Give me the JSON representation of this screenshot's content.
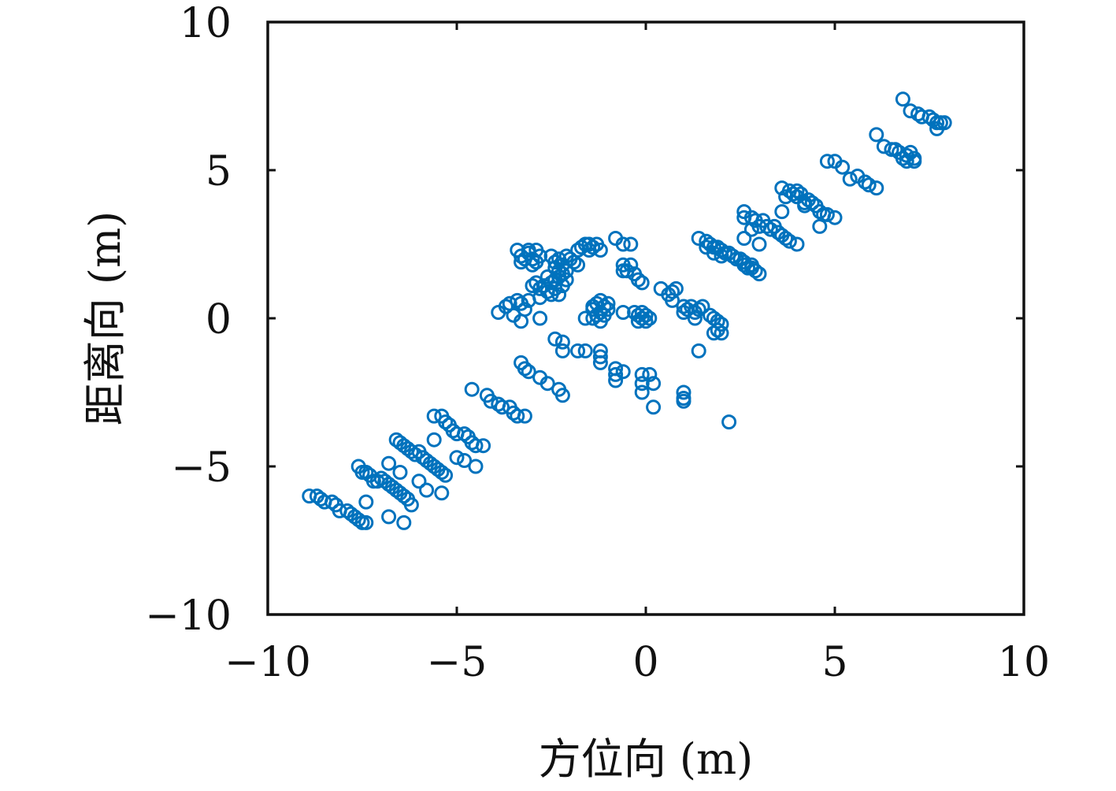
{
  "chart_data": {
    "type": "scatter",
    "title": "",
    "xlabel": "方位向 (m)",
    "ylabel": "距离向 (m)",
    "xlim": [
      -10,
      10
    ],
    "ylim": [
      -10,
      10
    ],
    "xticks": [
      -10,
      -5,
      0,
      5,
      10
    ],
    "yticks": [
      -10,
      -5,
      0,
      5,
      10
    ],
    "xtick_labels": [
      "−10",
      "−5",
      "0",
      "5",
      "10"
    ],
    "ytick_labels": [
      "−10",
      "−5",
      "0",
      "5",
      "10"
    ],
    "grid": false,
    "marker": "circle-open",
    "color": "#0072BD",
    "series": [
      {
        "points": [
          [
            -8.9,
            -6.0
          ],
          [
            -8.7,
            -6.0
          ],
          [
            -8.6,
            -6.1
          ],
          [
            -8.5,
            -6.2
          ],
          [
            -8.3,
            -6.2
          ],
          [
            -8.2,
            -6.3
          ],
          [
            -8.1,
            -6.5
          ],
          [
            -7.9,
            -6.5
          ],
          [
            -7.8,
            -6.6
          ],
          [
            -7.7,
            -6.7
          ],
          [
            -7.6,
            -6.8
          ],
          [
            -7.5,
            -6.9
          ],
          [
            -7.4,
            -6.9
          ],
          [
            -7.6,
            -5.0
          ],
          [
            -7.5,
            -5.2
          ],
          [
            -7.4,
            -5.2
          ],
          [
            -7.3,
            -5.3
          ],
          [
            -7.2,
            -5.5
          ],
          [
            -7.1,
            -5.5
          ],
          [
            -7.0,
            -5.4
          ],
          [
            -6.9,
            -5.5
          ],
          [
            -6.8,
            -5.6
          ],
          [
            -6.7,
            -5.7
          ],
          [
            -6.6,
            -5.8
          ],
          [
            -6.5,
            -5.9
          ],
          [
            -6.4,
            -6.0
          ],
          [
            -6.3,
            -6.1
          ],
          [
            -6.2,
            -6.3
          ],
          [
            -7.4,
            -6.2
          ],
          [
            -6.8,
            -6.7
          ],
          [
            -6.4,
            -6.9
          ],
          [
            -6.8,
            -4.9
          ],
          [
            -6.6,
            -4.1
          ],
          [
            -6.5,
            -4.2
          ],
          [
            -6.4,
            -4.3
          ],
          [
            -6.3,
            -4.4
          ],
          [
            -6.2,
            -4.5
          ],
          [
            -6.1,
            -4.6
          ],
          [
            -6.0,
            -4.5
          ],
          [
            -5.9,
            -4.7
          ],
          [
            -5.8,
            -4.8
          ],
          [
            -5.7,
            -4.9
          ],
          [
            -5.6,
            -5.0
          ],
          [
            -5.5,
            -5.1
          ],
          [
            -5.4,
            -5.2
          ],
          [
            -5.3,
            -5.3
          ],
          [
            -6.5,
            -5.2
          ],
          [
            -6.0,
            -5.5
          ],
          [
            -5.8,
            -5.8
          ],
          [
            -5.4,
            -5.9
          ],
          [
            -5.6,
            -3.3
          ],
          [
            -5.4,
            -3.3
          ],
          [
            -5.3,
            -3.5
          ],
          [
            -5.2,
            -3.6
          ],
          [
            -5.1,
            -3.8
          ],
          [
            -5.0,
            -3.9
          ],
          [
            -4.8,
            -3.9
          ],
          [
            -4.7,
            -4.0
          ],
          [
            -4.6,
            -4.2
          ],
          [
            -4.5,
            -4.3
          ],
          [
            -4.3,
            -4.3
          ],
          [
            -5.6,
            -4.1
          ],
          [
            -5.0,
            -4.7
          ],
          [
            -4.8,
            -4.8
          ],
          [
            -4.5,
            -5.0
          ],
          [
            -4.6,
            -2.4
          ],
          [
            -4.2,
            -2.6
          ],
          [
            -4.1,
            -2.8
          ],
          [
            -3.9,
            -2.9
          ],
          [
            -3.8,
            -3.0
          ],
          [
            -3.6,
            -3.0
          ],
          [
            -3.5,
            -3.2
          ],
          [
            -3.4,
            -3.3
          ],
          [
            -3.2,
            -3.3
          ],
          [
            -3.3,
            -1.5
          ],
          [
            -3.2,
            -1.7
          ],
          [
            -3.1,
            -1.8
          ],
          [
            -2.8,
            -2.0
          ],
          [
            -2.6,
            -2.2
          ],
          [
            -2.3,
            -2.4
          ],
          [
            -2.2,
            -2.6
          ],
          [
            -3.9,
            0.2
          ],
          [
            -3.7,
            0.4
          ],
          [
            -3.6,
            0.5
          ],
          [
            -3.4,
            0.6
          ],
          [
            -3.3,
            0.5
          ],
          [
            -3.2,
            0.3
          ],
          [
            -3.5,
            0.1
          ],
          [
            -3.3,
            -0.1
          ],
          [
            -2.8,
            0.0
          ],
          [
            -3.1,
            0.6
          ],
          [
            -3.4,
            2.3
          ],
          [
            -3.3,
            2.1
          ],
          [
            -3.2,
            2.0
          ],
          [
            -3.1,
            2.2
          ],
          [
            -3.0,
            2.0
          ],
          [
            -2.9,
            1.9
          ],
          [
            -2.8,
            2.1
          ],
          [
            -3.0,
            1.8
          ],
          [
            -3.3,
            1.9
          ],
          [
            -3.1,
            2.3
          ],
          [
            -2.9,
            2.3
          ],
          [
            -3.0,
            1.1
          ],
          [
            -2.9,
            1.2
          ],
          [
            -2.8,
            1.0
          ],
          [
            -2.7,
            1.1
          ],
          [
            -2.6,
            0.9
          ],
          [
            -2.5,
            1.2
          ],
          [
            -2.4,
            1.3
          ],
          [
            -2.3,
            1.4
          ],
          [
            -2.2,
            1.5
          ],
          [
            -2.1,
            1.6
          ],
          [
            -2.4,
            1.0
          ],
          [
            -2.2,
            1.1
          ],
          [
            -2.1,
            1.3
          ],
          [
            -2.5,
            0.8
          ],
          [
            -2.3,
            0.8
          ],
          [
            -2.6,
            1.4
          ],
          [
            -2.8,
            0.7
          ],
          [
            -2.5,
            2.1
          ],
          [
            -2.4,
            1.9
          ],
          [
            -2.3,
            2.0
          ],
          [
            -2.2,
            1.8
          ],
          [
            -2.1,
            2.1
          ],
          [
            -2.0,
            2.0
          ],
          [
            -1.9,
            1.9
          ],
          [
            -1.8,
            1.8
          ],
          [
            -2.4,
            1.7
          ],
          [
            -2.3,
            1.6
          ],
          [
            -1.8,
            2.3
          ],
          [
            -1.7,
            2.4
          ],
          [
            -1.6,
            2.5
          ],
          [
            -1.5,
            2.5
          ],
          [
            -1.4,
            2.4
          ],
          [
            -1.3,
            2.5
          ],
          [
            -1.2,
            2.3
          ],
          [
            -1.5,
            2.3
          ],
          [
            -0.8,
            2.7
          ],
          [
            -0.6,
            2.5
          ],
          [
            -0.4,
            2.5
          ],
          [
            -0.6,
            1.8
          ],
          [
            -0.5,
            1.6
          ],
          [
            -0.4,
            1.8
          ],
          [
            -0.3,
            1.5
          ],
          [
            -0.2,
            1.3
          ],
          [
            -0.1,
            1.2
          ],
          [
            -0.6,
            1.6
          ],
          [
            0.4,
            1.0
          ],
          [
            0.6,
            0.8
          ],
          [
            0.7,
            0.9
          ],
          [
            0.8,
            1.0
          ],
          [
            0.7,
            0.6
          ],
          [
            1.0,
            0.4
          ],
          [
            1.2,
            0.4
          ],
          [
            1.3,
            0.2
          ],
          [
            1.4,
            0.3
          ],
          [
            1.5,
            0.4
          ],
          [
            1.0,
            0.2
          ],
          [
            1.1,
            0.3
          ],
          [
            1.3,
            0.0
          ],
          [
            1.7,
            0.1
          ],
          [
            1.8,
            0.0
          ],
          [
            1.9,
            -0.1
          ],
          [
            2.0,
            -0.2
          ],
          [
            1.8,
            -0.5
          ],
          [
            1.9,
            -0.4
          ],
          [
            2.0,
            -0.5
          ],
          [
            1.4,
            -1.1
          ],
          [
            -1.2,
            0.6
          ],
          [
            -1.3,
            0.5
          ],
          [
            -1.4,
            0.4
          ],
          [
            -1.1,
            0.4
          ],
          [
            -1.0,
            0.3
          ],
          [
            -1.2,
            0.2
          ],
          [
            -1.3,
            0.1
          ],
          [
            -1.1,
            0.1
          ],
          [
            -1.4,
            0.0
          ],
          [
            -1.6,
            0.0
          ],
          [
            -1.2,
            -0.1
          ],
          [
            -1.4,
            0.3
          ],
          [
            -1.0,
            0.5
          ],
          [
            -0.3,
            0.2
          ],
          [
            -0.2,
            0.1
          ],
          [
            -0.1,
            0.0
          ],
          [
            0.0,
            -0.1
          ],
          [
            0.1,
            0.0
          ],
          [
            0.0,
            0.1
          ],
          [
            -0.2,
            -0.1
          ],
          [
            -0.1,
            0.2
          ],
          [
            -0.6,
            0.2
          ],
          [
            -2.4,
            -0.7
          ],
          [
            -2.2,
            -0.8
          ],
          [
            -2.2,
            -1.1
          ],
          [
            -1.8,
            -1.1
          ],
          [
            -1.6,
            -1.1
          ],
          [
            -1.2,
            -1.1
          ],
          [
            -1.2,
            -1.3
          ],
          [
            -1.2,
            -1.5
          ],
          [
            -0.8,
            -1.7
          ],
          [
            -0.8,
            -1.9
          ],
          [
            -0.8,
            -2.1
          ],
          [
            -0.6,
            -1.8
          ],
          [
            -0.1,
            -1.9
          ],
          [
            0.1,
            -1.9
          ],
          [
            -0.1,
            -2.2
          ],
          [
            -0.1,
            -2.5
          ],
          [
            0.2,
            -2.2
          ],
          [
            0.2,
            -3.0
          ],
          [
            1.0,
            -2.5
          ],
          [
            1.0,
            -2.7
          ],
          [
            1.0,
            -2.8
          ],
          [
            2.2,
            -3.5
          ],
          [
            1.4,
            2.7
          ],
          [
            1.6,
            2.6
          ],
          [
            1.7,
            2.5
          ],
          [
            1.8,
            2.4
          ],
          [
            1.9,
            2.4
          ],
          [
            2.0,
            2.3
          ],
          [
            2.1,
            2.2
          ],
          [
            2.2,
            2.2
          ],
          [
            2.3,
            2.1
          ],
          [
            2.4,
            2.0
          ],
          [
            2.5,
            2.0
          ],
          [
            2.6,
            1.9
          ],
          [
            2.7,
            1.7
          ],
          [
            2.8,
            1.7
          ],
          [
            2.9,
            1.6
          ],
          [
            3.0,
            1.5
          ],
          [
            1.6,
            2.4
          ],
          [
            1.8,
            2.2
          ],
          [
            2.0,
            2.1
          ],
          [
            2.6,
            1.8
          ],
          [
            2.8,
            1.8
          ],
          [
            2.6,
            3.6
          ],
          [
            2.6,
            3.4
          ],
          [
            2.8,
            3.4
          ],
          [
            2.9,
            3.3
          ],
          [
            3.0,
            3.1
          ],
          [
            3.1,
            3.3
          ],
          [
            3.2,
            3.1
          ],
          [
            3.3,
            3.0
          ],
          [
            3.4,
            3.1
          ],
          [
            3.5,
            2.9
          ],
          [
            3.6,
            2.8
          ],
          [
            3.7,
            2.7
          ],
          [
            3.8,
            2.6
          ],
          [
            4.0,
            2.5
          ],
          [
            2.6,
            2.7
          ],
          [
            2.8,
            3.0
          ],
          [
            3.0,
            2.5
          ],
          [
            3.6,
            3.6
          ],
          [
            3.6,
            4.4
          ],
          [
            3.8,
            4.3
          ],
          [
            3.9,
            4.2
          ],
          [
            4.0,
            4.1
          ],
          [
            4.1,
            4.2
          ],
          [
            4.2,
            3.9
          ],
          [
            4.3,
            4.0
          ],
          [
            4.4,
            3.9
          ],
          [
            4.5,
            3.8
          ],
          [
            4.6,
            3.6
          ],
          [
            4.7,
            3.5
          ],
          [
            4.8,
            3.5
          ],
          [
            5.0,
            3.4
          ],
          [
            4.2,
            3.8
          ],
          [
            4.0,
            4.3
          ],
          [
            4.6,
            3.1
          ],
          [
            3.7,
            4.1
          ],
          [
            4.8,
            5.3
          ],
          [
            5.0,
            5.3
          ],
          [
            5.2,
            5.1
          ],
          [
            5.4,
            4.7
          ],
          [
            5.6,
            4.8
          ],
          [
            5.8,
            4.6
          ],
          [
            5.9,
            4.5
          ],
          [
            6.1,
            4.4
          ],
          [
            6.1,
            6.2
          ],
          [
            6.3,
            5.8
          ],
          [
            6.5,
            5.7
          ],
          [
            6.6,
            5.7
          ],
          [
            6.7,
            5.6
          ],
          [
            6.8,
            5.4
          ],
          [
            6.9,
            5.5
          ],
          [
            7.0,
            5.6
          ],
          [
            7.1,
            5.4
          ],
          [
            6.9,
            5.3
          ],
          [
            7.1,
            5.3
          ],
          [
            6.8,
            7.4
          ],
          [
            7.0,
            7.0
          ],
          [
            7.2,
            6.9
          ],
          [
            7.3,
            6.8
          ],
          [
            7.5,
            6.8
          ],
          [
            7.6,
            6.7
          ],
          [
            7.7,
            6.6
          ],
          [
            7.8,
            6.6
          ],
          [
            7.9,
            6.6
          ],
          [
            7.7,
            6.4
          ]
        ]
      }
    ]
  }
}
